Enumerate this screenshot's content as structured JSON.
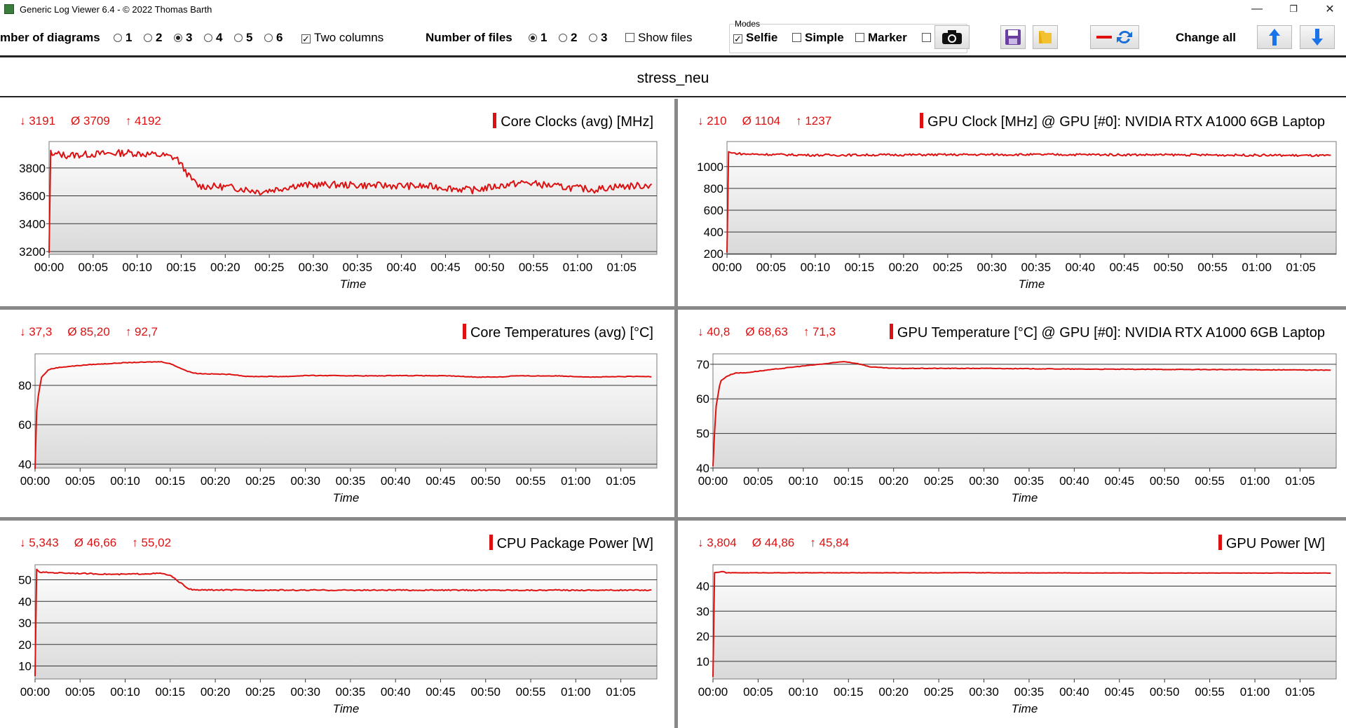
{
  "window": {
    "title": "Generic Log Viewer 6.4 - © 2022 Thomas Barth",
    "minimize": "—",
    "maximize": "❐",
    "close": "✕"
  },
  "toolbar": {
    "diagrams_label": "mber of diagrams",
    "diagram_options": [
      "1",
      "2",
      "3",
      "4",
      "5",
      "6"
    ],
    "diagram_selected": "3",
    "two_columns_label": "Two columns",
    "two_columns_checked": true,
    "files_label": "Number of files",
    "file_options": [
      "1",
      "2",
      "3"
    ],
    "file_selected": "1",
    "show_files_label": "Show files",
    "modes_label": "Modes",
    "mode_selfie": "Selfie",
    "mode_simple": "Simple",
    "mode_marker": "Marker",
    "change_all_label": "Change all"
  },
  "file_title": "stress_neu",
  "x_axis_label": "Time",
  "x_ticks": [
    "00:00",
    "00:05",
    "00:10",
    "00:15",
    "00:20",
    "00:25",
    "00:30",
    "00:35",
    "00:40",
    "00:45",
    "00:50",
    "00:55",
    "01:00",
    "01:05"
  ],
  "colors": {
    "series": "#dd1111",
    "stats": "#cc1111"
  },
  "chart_data": [
    {
      "type": "line",
      "title": "Core Clocks (avg) [MHz]",
      "stats": {
        "min": "3191",
        "avg": "3709",
        "max": "4192"
      },
      "xlabel": "Time",
      "ylabel": "",
      "yticks": [
        3200,
        3400,
        3600,
        3800
      ],
      "ylim": [
        3180,
        3990
      ],
      "noise": 25,
      "points": [
        [
          0,
          3190
        ],
        [
          0.1,
          3950
        ],
        [
          0.3,
          3890
        ],
        [
          1,
          3900
        ],
        [
          2,
          3890
        ],
        [
          5,
          3900
        ],
        [
          9,
          3910
        ],
        [
          13,
          3890
        ],
        [
          14.5,
          3870
        ],
        [
          16,
          3730
        ],
        [
          17,
          3670
        ],
        [
          20,
          3665
        ],
        [
          22,
          3650
        ],
        [
          24,
          3630
        ],
        [
          26,
          3650
        ],
        [
          28,
          3675
        ],
        [
          32,
          3680
        ],
        [
          36,
          3675
        ],
        [
          40,
          3672
        ],
        [
          44,
          3665
        ],
        [
          48,
          3640
        ],
        [
          52,
          3680
        ],
        [
          54,
          3695
        ],
        [
          58,
          3665
        ],
        [
          62,
          3645
        ],
        [
          64,
          3665
        ],
        [
          68,
          3675
        ],
        [
          68.4,
          3690
        ]
      ]
    },
    {
      "type": "line",
      "title": "GPU Clock [MHz] @ GPU [#0]: NVIDIA RTX A1000 6GB Laptop",
      "stats": {
        "min": "210",
        "avg": "1104",
        "max": "1237"
      },
      "xlabel": "Time",
      "ylabel": "",
      "yticks": [
        200,
        400,
        600,
        800,
        1000
      ],
      "ylim": [
        195,
        1230
      ],
      "noise": 10,
      "points": [
        [
          0,
          210
        ],
        [
          0.1,
          1140
        ],
        [
          0.5,
          1125
        ],
        [
          2,
          1115
        ],
        [
          10,
          1105
        ],
        [
          20,
          1108
        ],
        [
          30,
          1110
        ],
        [
          40,
          1110
        ],
        [
          50,
          1108
        ],
        [
          60,
          1105
        ],
        [
          68.4,
          1100
        ]
      ]
    },
    {
      "type": "line",
      "title": "Core Temperatures (avg) [°C]",
      "stats": {
        "min": "37,3",
        "avg": "85,20",
        "max": "92,7"
      },
      "xlabel": "Time",
      "ylabel": "",
      "yticks": [
        40,
        60,
        80
      ],
      "ylim": [
        38,
        96
      ],
      "noise": 0.15,
      "points": [
        [
          0,
          37.5
        ],
        [
          0.2,
          70
        ],
        [
          0.7,
          84
        ],
        [
          1.5,
          88
        ],
        [
          2.5,
          89
        ],
        [
          3.5,
          89.5
        ],
        [
          6,
          90.5
        ],
        [
          10,
          91.5
        ],
        [
          14,
          92
        ],
        [
          15,
          91
        ],
        [
          17,
          87
        ],
        [
          18,
          86
        ],
        [
          22,
          85.5
        ],
        [
          23.5,
          84.5
        ],
        [
          28,
          84.5
        ],
        [
          30,
          85
        ],
        [
          38,
          84.8
        ],
        [
          40,
          85
        ],
        [
          46,
          84.8
        ],
        [
          49,
          84.2
        ],
        [
          52,
          84.3
        ],
        [
          53,
          84.8
        ],
        [
          58,
          84.8
        ],
        [
          60,
          84.5
        ],
        [
          62,
          84.2
        ],
        [
          66,
          84.5
        ],
        [
          68.4,
          84.5
        ]
      ]
    },
    {
      "type": "line",
      "title": "GPU Temperature [°C] @ GPU [#0]: NVIDIA RTX A1000 6GB Laptop",
      "stats": {
        "min": "40,8",
        "avg": "68,63",
        "max": "71,3"
      },
      "xlabel": "Time",
      "ylabel": "",
      "yticks": [
        40,
        50,
        60,
        70
      ],
      "ylim": [
        40,
        73
      ],
      "noise": 0.08,
      "points": [
        [
          0,
          40.5
        ],
        [
          0.3,
          57
        ],
        [
          0.8,
          65
        ],
        [
          1.5,
          66.5
        ],
        [
          2.5,
          67.5
        ],
        [
          3.5,
          67.5
        ],
        [
          5,
          68
        ],
        [
          10,
          69.5
        ],
        [
          13,
          70.3
        ],
        [
          14.5,
          70.8
        ],
        [
          16,
          70.2
        ],
        [
          17.5,
          69.2
        ],
        [
          20,
          68.8
        ],
        [
          30,
          68.8
        ],
        [
          40,
          68.6
        ],
        [
          50,
          68.5
        ],
        [
          60,
          68.4
        ],
        [
          68.4,
          68.3
        ]
      ]
    },
    {
      "type": "line",
      "title": "CPU Package Power [W]",
      "stats": {
        "min": "5,343",
        "avg": "46,66",
        "max": "55,02"
      },
      "xlabel": "Time",
      "ylabel": "",
      "yticks": [
        10,
        20,
        30,
        40,
        50
      ],
      "ylim": [
        4,
        57
      ],
      "noise": 0.25,
      "points": [
        [
          0,
          5.3
        ],
        [
          0.15,
          55
        ],
        [
          0.5,
          53.5
        ],
        [
          5,
          53
        ],
        [
          9,
          52.5
        ],
        [
          14,
          53
        ],
        [
          15,
          52
        ],
        [
          17,
          46
        ],
        [
          17.5,
          45.3
        ],
        [
          30,
          45.2
        ],
        [
          50,
          45.2
        ],
        [
          68.4,
          45.2
        ]
      ]
    },
    {
      "type": "line",
      "title": "GPU Power [W]",
      "stats": {
        "min": "3,804",
        "avg": "44,86",
        "max": "45,84"
      },
      "xlabel": "Time",
      "ylabel": "",
      "yticks": [
        10,
        20,
        30,
        40
      ],
      "ylim": [
        3,
        48.5
      ],
      "noise": 0.06,
      "points": [
        [
          0,
          3.8
        ],
        [
          0.1,
          45.3
        ],
        [
          1.2,
          45.8
        ],
        [
          1.4,
          45.3
        ],
        [
          10,
          45.3
        ],
        [
          30,
          45.3
        ],
        [
          50,
          45.2
        ],
        [
          68.4,
          45.2
        ]
      ]
    }
  ]
}
